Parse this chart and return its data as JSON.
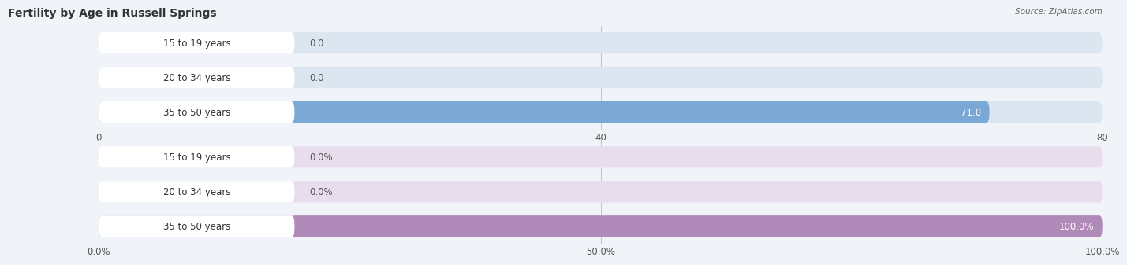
{
  "title": "Fertility by Age in Russell Springs",
  "source": "Source: ZipAtlas.com",
  "top_chart": {
    "categories": [
      "15 to 19 years",
      "20 to 34 years",
      "35 to 50 years"
    ],
    "values": [
      0.0,
      0.0,
      71.0
    ],
    "xlim": [
      0,
      80.0
    ],
    "xticks": [
      0.0,
      40.0,
      80.0
    ],
    "bar_color": "#7ba7d4",
    "bg_color": "#dce6f1",
    "label_bg_color": "#ffffff",
    "value_labels": [
      "0.0",
      "0.0",
      "71.0"
    ]
  },
  "bottom_chart": {
    "categories": [
      "15 to 19 years",
      "20 to 34 years",
      "35 to 50 years"
    ],
    "values": [
      0.0,
      0.0,
      100.0
    ],
    "xlim": [
      0,
      100.0
    ],
    "xticks": [
      0.0,
      50.0,
      100.0
    ],
    "xtick_labels": [
      "0.0%",
      "50.0%",
      "100.0%"
    ],
    "bar_color": "#b08ab8",
    "bg_color": "#e8dded",
    "label_bg_color": "#ffffff",
    "value_labels": [
      "0.0%",
      "0.0%",
      "100.0%"
    ]
  },
  "bar_height": 0.62,
  "label_fontsize": 8.5,
  "tick_fontsize": 8.5,
  "title_fontsize": 10,
  "source_fontsize": 7.5,
  "bg_figure": "#f0f4f8"
}
